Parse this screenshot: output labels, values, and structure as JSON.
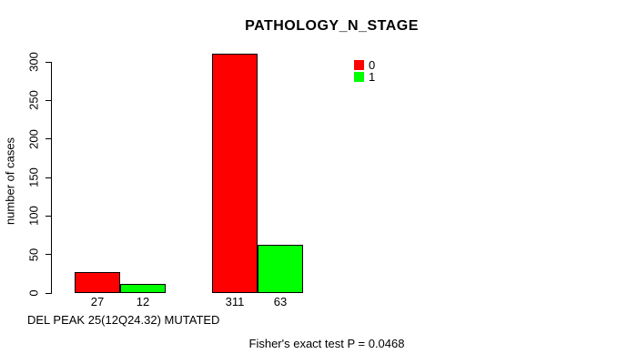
{
  "chart_data": {
    "type": "bar",
    "title": "PATHOLOGY_N_STAGE",
    "ylabel": "number of cases",
    "xlabel": "DEL PEAK 25(12Q24.32) MUTATED",
    "annotation": "Fisher's exact test P = 0.0468",
    "ylim": [
      0,
      300
    ],
    "yticks": [
      0,
      50,
      100,
      150,
      200,
      250,
      300
    ],
    "grid": false,
    "legend_position": "top-right",
    "legend": [
      {
        "label": "0",
        "color": "#ff0000"
      },
      {
        "label": "1",
        "color": "#00ff00"
      }
    ],
    "series": [
      {
        "name": "0",
        "color": "#ff0000",
        "values": [
          27,
          311
        ]
      },
      {
        "name": "1",
        "color": "#00ff00",
        "values": [
          12,
          63
        ]
      }
    ],
    "bar_value_labels": [
      [
        "27",
        "12"
      ],
      [
        "311",
        "63"
      ]
    ],
    "background": "#ffffff",
    "axis_color": "#000000"
  }
}
